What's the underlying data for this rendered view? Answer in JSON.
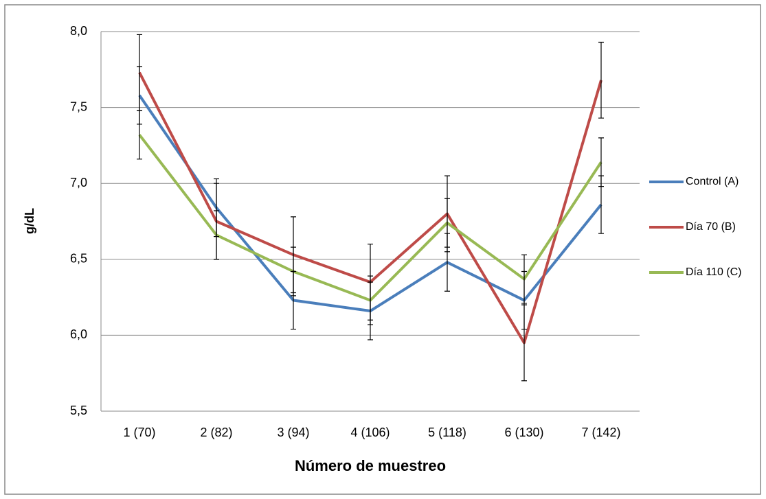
{
  "chart_data": {
    "type": "line",
    "x_label": "Número de muestreo",
    "y_label": "g/dL",
    "categories": [
      "1 (70)",
      "2 (82)",
      "3 (94)",
      "4 (106)",
      "5 (118)",
      "6 (130)",
      "7 (142)"
    ],
    "series": [
      {
        "name": "Control (A)",
        "color": "#4a7ebb",
        "values": [
          7.58,
          6.84,
          6.23,
          6.16,
          6.48,
          6.23,
          6.86
        ],
        "errors": [
          0.19,
          0.19,
          0.19,
          0.19,
          0.19,
          0.19,
          0.19
        ]
      },
      {
        "name": "Día 70 (B)",
        "color": "#be4b48",
        "values": [
          7.73,
          6.75,
          6.53,
          6.35,
          6.8,
          5.95,
          7.68
        ],
        "errors": [
          0.25,
          0.25,
          0.25,
          0.25,
          0.25,
          0.25,
          0.25
        ]
      },
      {
        "name": "Día 110 (C)",
        "color": "#98b954",
        "values": [
          7.32,
          6.66,
          6.42,
          6.23,
          6.74,
          6.37,
          7.14
        ],
        "errors": [
          0.16,
          0.16,
          0.16,
          0.16,
          0.16,
          0.16,
          0.16
        ]
      }
    ],
    "ylim": [
      5.5,
      8.0
    ],
    "yticks": [
      {
        "value": 5.5,
        "label": "5,5"
      },
      {
        "value": 6.0,
        "label": "6,0"
      },
      {
        "value": 6.5,
        "label": "6,5"
      },
      {
        "value": 7.0,
        "label": "7,0"
      },
      {
        "value": 7.5,
        "label": "7,5"
      },
      {
        "value": 8.0,
        "label": "8,0"
      }
    ],
    "grid": true,
    "legend": "right",
    "error_bar_color": "#000000"
  }
}
